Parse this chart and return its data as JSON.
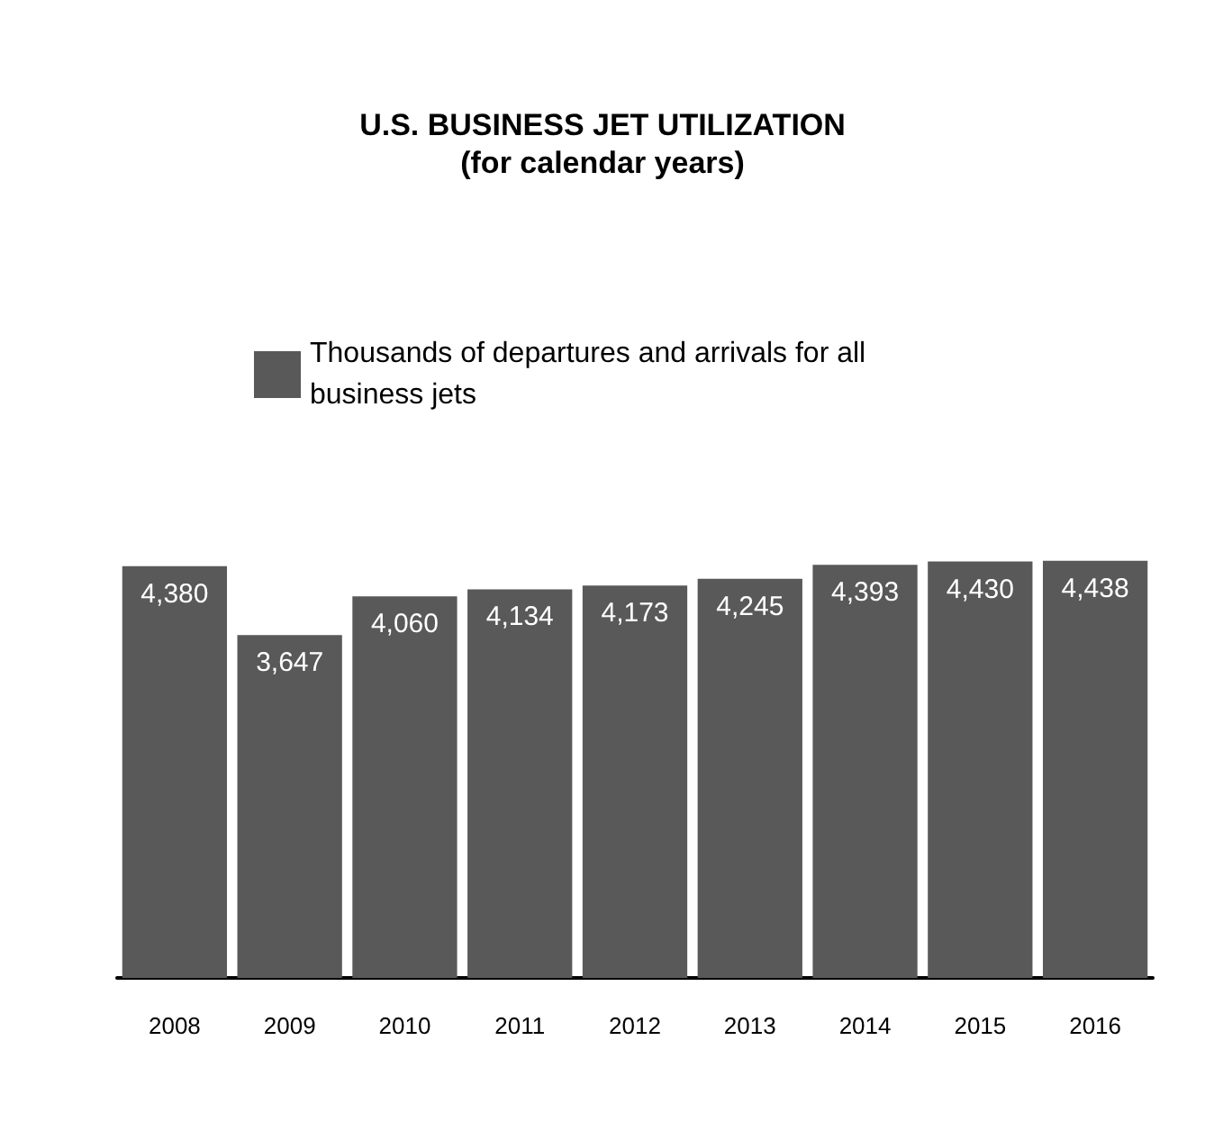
{
  "chart_data": {
    "type": "bar",
    "title": "U.S. BUSINESS JET UTILIZATION",
    "subtitle": "(for calendar years)",
    "categories": [
      "2008",
      "2009",
      "2010",
      "2011",
      "2012",
      "2013",
      "2014",
      "2015",
      "2016"
    ],
    "series": [
      {
        "name": "Thousands of departures and arrivals for all business jets",
        "color": "#595959",
        "values": [
          4380,
          3647,
          4060,
          4134,
          4173,
          4245,
          4393,
          4430,
          4438
        ],
        "value_labels": [
          "4,380",
          "3,647",
          "4,060",
          "4,134",
          "4,173",
          "4,245",
          "4,393",
          "4,430",
          "4,438"
        ]
      }
    ],
    "legend": "top"
  }
}
